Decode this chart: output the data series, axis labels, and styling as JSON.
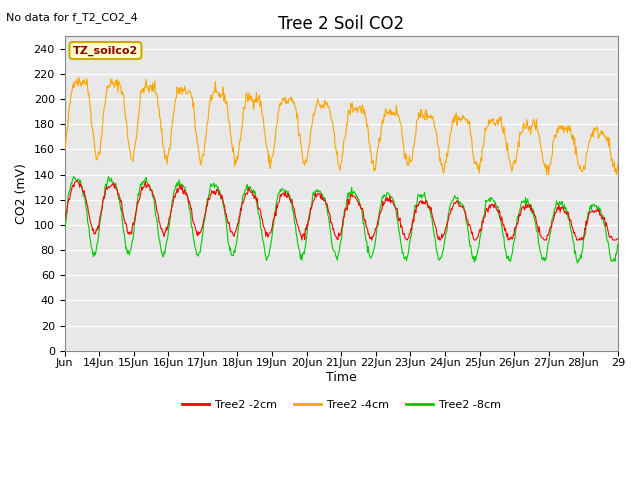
{
  "title": "Tree 2 Soil CO2",
  "no_data_text": "No data for f_T2_CO2_4",
  "ylabel": "CO2 (mV)",
  "xlabel": "Time",
  "legend_label": "TZ_soilco2",
  "series_labels": [
    "Tree2 -2cm",
    "Tree2 -4cm",
    "Tree2 -8cm"
  ],
  "series_colors": [
    "#ff0000",
    "#ffa500",
    "#00cc00"
  ],
  "ylim": [
    0,
    250
  ],
  "yticks": [
    0,
    20,
    40,
    60,
    80,
    100,
    120,
    140,
    160,
    180,
    200,
    220,
    240
  ],
  "x_tick_labels": [
    "Jun",
    "14Jun",
    "15Jun",
    "16Jun",
    "17Jun",
    "18Jun",
    "19Jun",
    "20Jun",
    "21Jun",
    "22Jun",
    "23Jun",
    "24Jun",
    "25Jun",
    "26Jun",
    "27Jun",
    "28Jun",
    "29"
  ],
  "fig_bg_color": "#ffffff",
  "plot_bg_color": "#e8e8e8",
  "grid_color": "#ffffff",
  "title_fontsize": 12,
  "axis_fontsize": 9,
  "tick_fontsize": 8,
  "legend_fontsize": 8
}
